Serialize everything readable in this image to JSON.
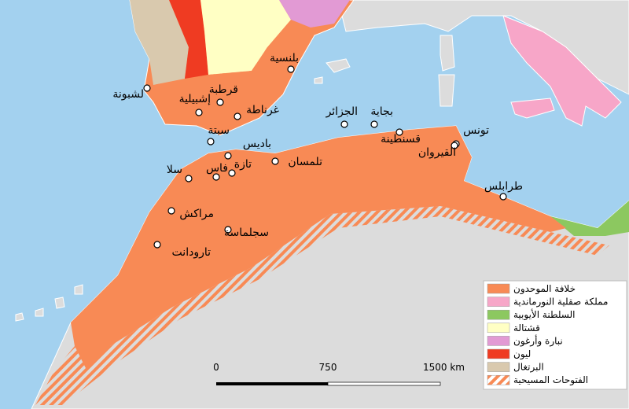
{
  "cities": [
    "بلنسية",
    "لشبونة",
    "قرطبة",
    "إشبيلية",
    "غرناطة",
    "سبتة",
    "باديس",
    "فاس",
    "تازة",
    "سلا",
    "تلمسان",
    "الجزائر",
    "بجاية",
    "قسنطينة",
    "تونس",
    "القيروان",
    "طرابلس",
    "مراكش",
    "سجلماسة",
    "تارودانت"
  ],
  "legend": {
    "items": [
      {
        "label": "خلافة الموحدون",
        "color": "#f88a55"
      },
      {
        "label": "مملكة صقلية النورماندية",
        "color": "#f7a6c8"
      },
      {
        "label": "السلطنة الأيوبية",
        "color": "#8cc860"
      },
      {
        "label": "قشتالة",
        "color": "#ffffc4"
      },
      {
        "label": "نبارة وأرغون",
        "color": "#e29ad4"
      },
      {
        "label": "ليون",
        "color": "#ef3b22"
      },
      {
        "label": "البرتغال",
        "color": "#d9c9ae"
      },
      {
        "label": "الفتوحات المسيحية",
        "color": "#f88a55",
        "style": "hatched"
      }
    ]
  },
  "scale_bar": {
    "labels": [
      "0",
      "750",
      "1500 km"
    ]
  }
}
